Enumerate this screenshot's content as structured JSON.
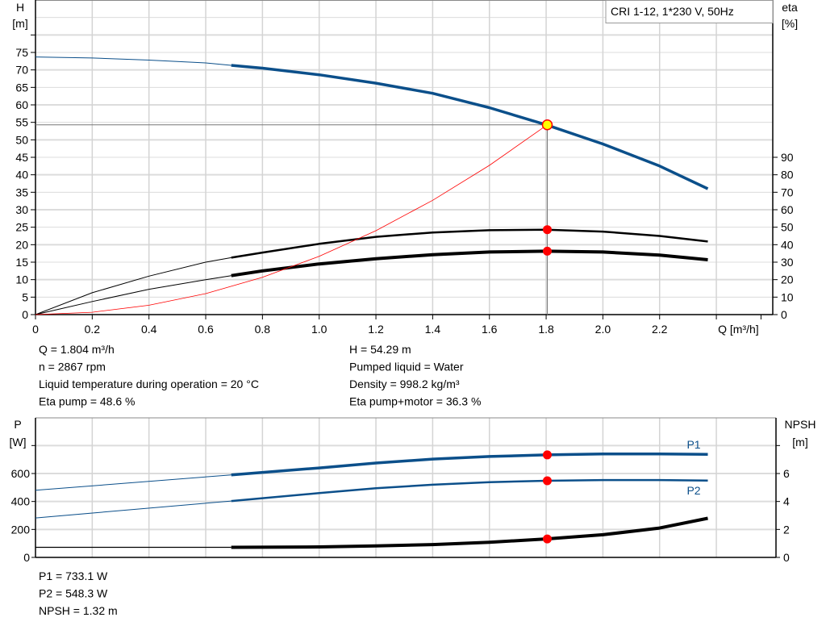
{
  "chart_data": [
    {
      "type": "line",
      "title_box": "CRI 1-12, 1*230 V, 50Hz",
      "xlabel": "Q [m³/h]",
      "ylabel_left": [
        "H",
        "[m]"
      ],
      "ylabel_right": [
        "eta",
        "[%]"
      ],
      "xlim": [
        0,
        2.6
      ],
      "ylim_left": [
        0,
        90
      ],
      "ylim_right": [
        0,
        180
      ],
      "x_ticks": [
        "0",
        "0.2",
        "0.4",
        "0.6",
        "0.8",
        "1.0",
        "1.2",
        "1.4",
        "1.6",
        "1.8",
        "2.0",
        "2.2"
      ],
      "y_ticks_left": [
        "0",
        "5",
        "10",
        "15",
        "20",
        "25",
        "30",
        "35",
        "40",
        "45",
        "50",
        "55",
        "60",
        "65",
        "70",
        "75"
      ],
      "y_ticks_right": [
        "0",
        "10",
        "20",
        "30",
        "40",
        "50",
        "60",
        "70",
        "80",
        "90"
      ],
      "grid": true,
      "series": [
        {
          "key": "H",
          "axis": "left",
          "color": "#0b4f8a",
          "x": [
            0,
            0.2,
            0.4,
            0.6,
            0.69,
            0.8,
            1.0,
            1.2,
            1.4,
            1.6,
            1.8,
            2.0,
            2.2,
            2.37
          ],
          "y": [
            73.7,
            73.4,
            72.8,
            72.0,
            71.3,
            70.5,
            68.6,
            66.2,
            63.3,
            59.2,
            54.3,
            48.8,
            42.5,
            36.0
          ]
        },
        {
          "key": "eta_pump",
          "axis": "right",
          "color": "#000000",
          "x": [
            0,
            0.2,
            0.4,
            0.6,
            0.69,
            0.8,
            1.0,
            1.2,
            1.4,
            1.6,
            1.8,
            2.0,
            2.2,
            2.37
          ],
          "y": [
            0,
            12.5,
            22,
            30,
            32.6,
            35.5,
            40.5,
            44.5,
            47,
            48.3,
            48.6,
            47.5,
            45,
            41.8
          ]
        },
        {
          "key": "eta_pump_motor",
          "axis": "right",
          "color": "#000000",
          "x": [
            0,
            0.2,
            0.4,
            0.6,
            0.69,
            0.8,
            1.0,
            1.2,
            1.4,
            1.6,
            1.8,
            2.0,
            2.2,
            2.37
          ],
          "y": [
            0,
            7.5,
            14.5,
            20,
            22.3,
            25,
            29,
            32,
            34.3,
            35.8,
            36.3,
            35.8,
            34,
            31.4
          ]
        },
        {
          "key": "system_curve",
          "axis": "left",
          "color": "#ff0000",
          "x": [
            0,
            0.2,
            0.4,
            0.6,
            0.8,
            1.0,
            1.2,
            1.4,
            1.6,
            1.804
          ],
          "y": [
            0,
            0.67,
            2.67,
            6.0,
            10.67,
            16.68,
            24.0,
            32.7,
            42.7,
            54.29
          ]
        }
      ],
      "duty_range": [
        0.69,
        2.37
      ],
      "operating_point": {
        "Q": 1.804,
        "H": 54.29,
        "eta_pump": 48.6,
        "eta_pump_motor": 36.3
      }
    },
    {
      "type": "line",
      "ylabel_left": [
        "P",
        "[W]"
      ],
      "ylabel_right": [
        "NPSH",
        "[m]"
      ],
      "xlim": [
        0,
        2.6
      ],
      "ylim_left": [
        0,
        1000
      ],
      "ylim_right": [
        0,
        10
      ],
      "y_ticks_left": [
        "0",
        "200",
        "400",
        "600"
      ],
      "y_ticks_right": [
        "0",
        "2",
        "4",
        "6"
      ],
      "grid": true,
      "series": [
        {
          "key": "P1",
          "name": "P1",
          "axis": "left",
          "color": "#0b4f8a",
          "x": [
            0,
            0.69,
            1.0,
            1.2,
            1.4,
            1.6,
            1.8,
            2.0,
            2.2,
            2.37
          ],
          "y": [
            480,
            590,
            640,
            675,
            703,
            722,
            733,
            740,
            740,
            737
          ]
        },
        {
          "key": "P2",
          "name": "P2",
          "axis": "left",
          "color": "#0b4f8a",
          "x": [
            0,
            0.69,
            1.0,
            1.2,
            1.4,
            1.6,
            1.8,
            2.0,
            2.2,
            2.37
          ],
          "y": [
            282,
            403,
            460,
            495,
            520,
            538,
            548,
            553,
            553,
            550
          ]
        },
        {
          "key": "NPSH",
          "axis": "right",
          "color": "#000000",
          "x": [
            0,
            0.69,
            1.0,
            1.2,
            1.4,
            1.6,
            1.8,
            2.0,
            2.2,
            2.37
          ],
          "y": [
            0.72,
            0.72,
            0.75,
            0.82,
            0.92,
            1.08,
            1.32,
            1.62,
            2.1,
            2.8
          ]
        }
      ],
      "operating_point": {
        "Q": 1.804,
        "P1": 733.1,
        "P2": 548.3,
        "NPSH": 1.32
      }
    }
  ],
  "info_top": {
    "left": [
      "Q = 1.804 m³/h",
      "n = 2867 rpm",
      "Liquid temperature during operation = 20 °C",
      "Eta pump = 48.6 %"
    ],
    "right": [
      "H = 54.29 m",
      "Pumped liquid = Water",
      "Density = 998.2 kg/m³",
      "Eta pump+motor = 36.3 %"
    ]
  },
  "info_bottom": [
    "P1 = 733.1 W",
    "P2 = 548.3 W",
    "NPSH = 1.32 m"
  ]
}
